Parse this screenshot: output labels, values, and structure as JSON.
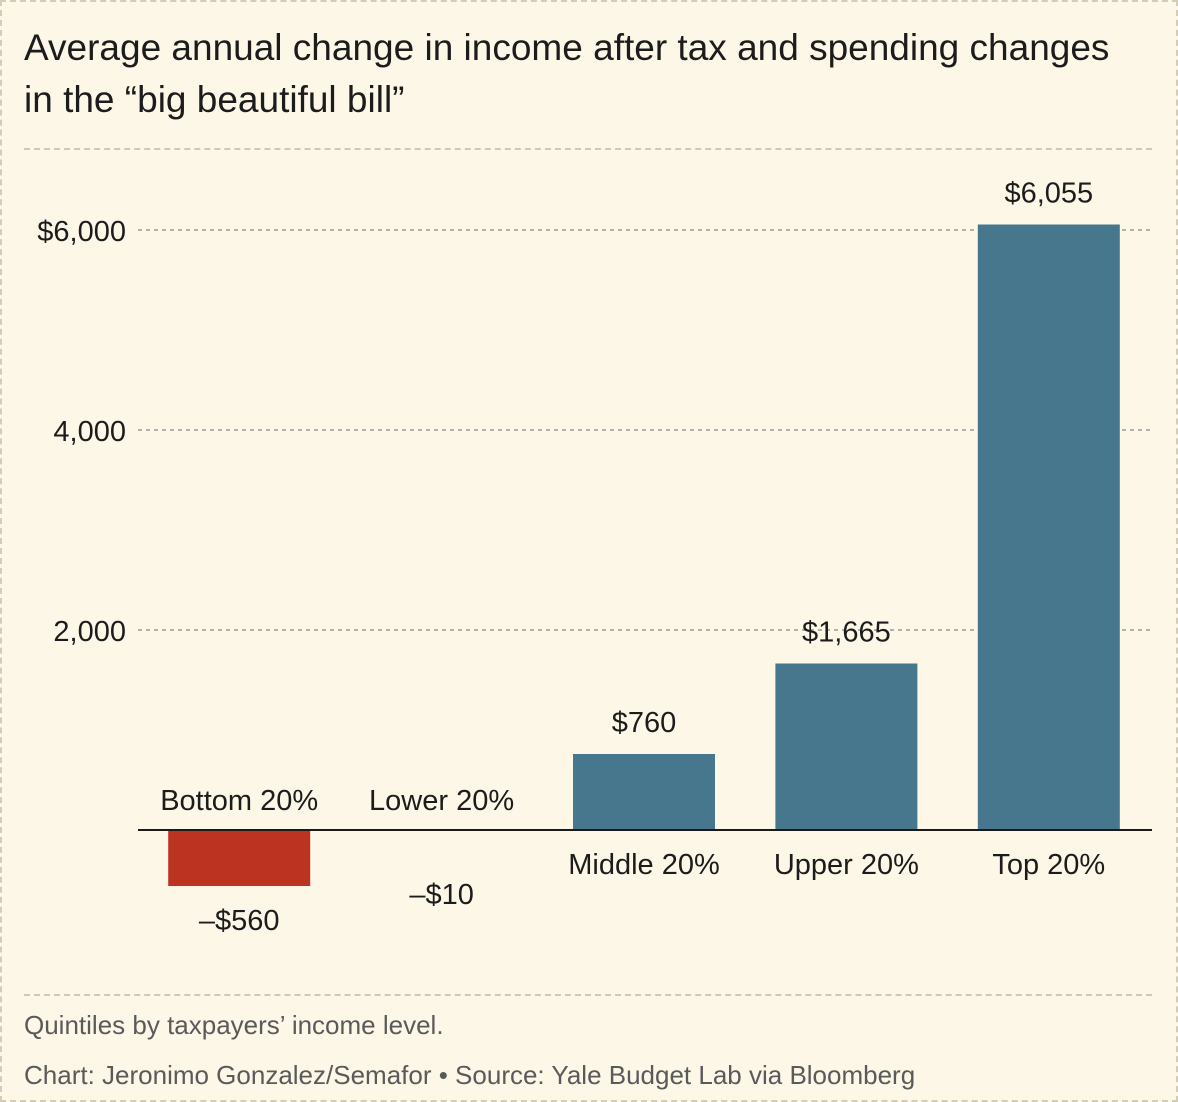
{
  "chart_data": {
    "type": "bar",
    "title": "Average annual change in income after tax and spending changes in the “big beautiful bill”",
    "categories": [
      "Bottom 20%",
      "Lower 20%",
      "Middle 20%",
      "Upper 20%",
      "Top 20%"
    ],
    "values": [
      -560,
      -10,
      760,
      1665,
      6055
    ],
    "value_labels": [
      "–$560",
      "–$10",
      "$760",
      "$1,665",
      "$6,055"
    ],
    "y_ticks": [
      2000,
      4000,
      6000
    ],
    "y_tick_labels": [
      "2,000",
      "4,000",
      "$6,000"
    ],
    "ylim": [
      -1000,
      6800
    ],
    "grid": true,
    "colors": {
      "negative": "#bd3322",
      "positive": "#46778c"
    },
    "xlabel": "",
    "ylabel": ""
  },
  "footer": {
    "note": "Quintiles by taxpayers’ income level.",
    "credit": "Chart: Jeronimo Gonzalez/Semafor • Source: Yale Budget Lab via Bloomberg"
  }
}
